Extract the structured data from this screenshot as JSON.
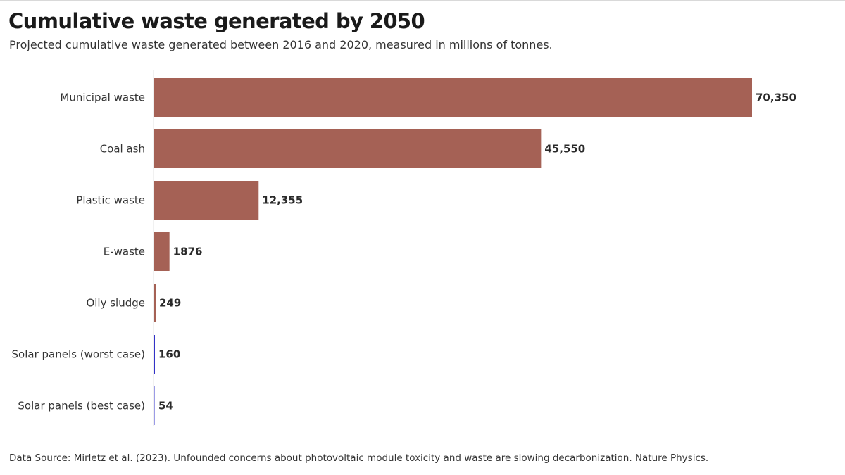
{
  "header": {
    "title": "Cumulative waste generated by 2050",
    "subtitle": "Projected cumulative waste generated between 2016 and 2020, measured in millions of tonnes."
  },
  "footer": {
    "source": "Data Source: Mirletz et al. (2023). Unfounded concerns about photovoltaic module toxicity and waste are slowing decarbonization. Nature Physics."
  },
  "colors": {
    "default_bar": "#a56155",
    "solar_worst": "#3232c8",
    "solar_best": "#9b9be6",
    "axis_line": "#e3e3e3"
  },
  "chart_data": {
    "type": "bar",
    "orientation": "horizontal",
    "title": "Cumulative waste generated by 2050",
    "subtitle": "Projected cumulative waste generated between 2016 and 2020, measured in millions of tonnes.",
    "categories": [
      "Municipal waste",
      "Coal ash",
      "Plastic waste",
      "E-waste",
      "Oily sludge",
      "Solar panels (worst case)",
      "Solar panels (best case)"
    ],
    "values": [
      70350,
      45550,
      12355,
      1876,
      249,
      160,
      54
    ],
    "value_labels": [
      "70,350",
      "45,550",
      "12,355",
      "1876",
      "249",
      "160",
      "54"
    ],
    "bar_colors": [
      "#a56155",
      "#a56155",
      "#a56155",
      "#a56155",
      "#a56155",
      "#3232c8",
      "#9b9be6"
    ],
    "xlim": [
      0,
      70350
    ],
    "grid": false,
    "legend": "none",
    "xlabel": "",
    "ylabel": ""
  }
}
